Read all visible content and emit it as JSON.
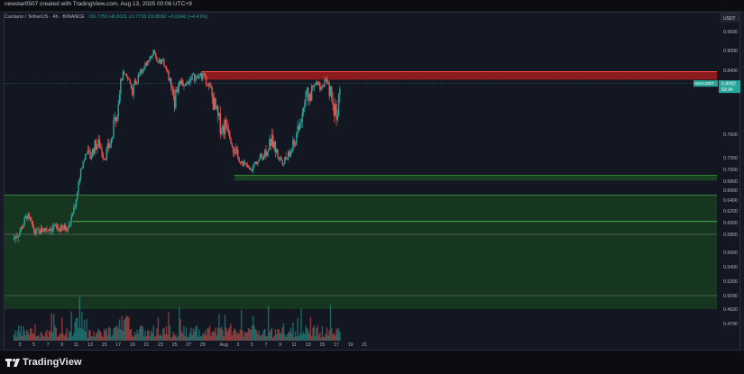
{
  "header": {
    "creator_line": "newstar0507 created with TradingView.com, Aug 13, 2025 00:06 UTC+9",
    "symbol_line": "Cardano / TetherUS · 4h · BINANCE",
    "ohlc": "O0.7750  H0.8111  L0.7733  C0.8092  +0.0342 (+4.41%)"
  },
  "price_axis": {
    "currency": "USDT",
    "ticks": [
      "0.9600",
      "0.9000",
      "0.8400",
      "0.8000",
      "0.7600",
      "0.7300",
      "0.7000",
      "0.6800",
      "0.6600",
      "0.6400",
      "0.6200",
      "0.6000",
      "0.5800",
      "0.5600",
      "0.5400",
      "0.5250",
      "0.5090",
      "0.4930",
      "0.4790"
    ],
    "current_label": "ADAUSDT",
    "current_price": "0.8092",
    "countdown": "53:34"
  },
  "time_axis": {
    "labels": [
      "3",
      "5",
      "7",
      "9",
      "11",
      "13",
      "15",
      "17",
      "19",
      "21",
      "23",
      "25",
      "27",
      "29",
      "Aug",
      "3",
      "5",
      "7",
      "9",
      "11",
      "13",
      "15",
      "17",
      "19",
      "21"
    ]
  },
  "brand": {
    "name": "TradingView"
  },
  "colors": {
    "up": "#26a69a",
    "down": "#ef5350",
    "supply_zone": "#b71c1c",
    "demand_zone": "#1b5e20",
    "background": "#131722"
  },
  "chart_data": {
    "type": "candlestick",
    "title": "Cardano / TetherUS · 4h · BINANCE",
    "interval": "4h",
    "ylim": [
      0.479,
      0.96
    ],
    "x_range": [
      "Jul 2",
      "Aug 21"
    ],
    "current_price": 0.8092,
    "close_path": [
      {
        "day": 2.0,
        "close": 0.574
      },
      {
        "day": 3.0,
        "close": 0.585
      },
      {
        "day": 4.0,
        "close": 0.612
      },
      {
        "day": 4.6,
        "close": 0.598
      },
      {
        "day": 5.2,
        "close": 0.582
      },
      {
        "day": 6.5,
        "close": 0.589
      },
      {
        "day": 8.0,
        "close": 0.592
      },
      {
        "day": 9.0,
        "close": 0.588
      },
      {
        "day": 10.0,
        "close": 0.594
      },
      {
        "day": 11.0,
        "close": 0.64
      },
      {
        "day": 11.6,
        "close": 0.7
      },
      {
        "day": 12.3,
        "close": 0.735
      },
      {
        "day": 13.0,
        "close": 0.73
      },
      {
        "day": 13.6,
        "close": 0.745
      },
      {
        "day": 14.3,
        "close": 0.748
      },
      {
        "day": 15.0,
        "close": 0.73
      },
      {
        "day": 16.0,
        "close": 0.752
      },
      {
        "day": 17.0,
        "close": 0.79
      },
      {
        "day": 17.6,
        "close": 0.83
      },
      {
        "day": 18.4,
        "close": 0.818
      },
      {
        "day": 19.0,
        "close": 0.8
      },
      {
        "day": 20.0,
        "close": 0.83
      },
      {
        "day": 20.6,
        "close": 0.85
      },
      {
        "day": 21.3,
        "close": 0.87
      },
      {
        "day": 22.0,
        "close": 0.895
      },
      {
        "day": 22.6,
        "close": 0.862
      },
      {
        "day": 23.3,
        "close": 0.872
      },
      {
        "day": 24.2,
        "close": 0.82
      },
      {
        "day": 25.0,
        "close": 0.79
      },
      {
        "day": 25.8,
        "close": 0.815
      },
      {
        "day": 26.6,
        "close": 0.805
      },
      {
        "day": 27.4,
        "close": 0.826
      },
      {
        "day": 28.2,
        "close": 0.822
      },
      {
        "day": 29.0,
        "close": 0.83
      },
      {
        "day": 29.6,
        "close": 0.812
      },
      {
        "day": 30.4,
        "close": 0.79
      },
      {
        "day": 31.2,
        "close": 0.772
      },
      {
        "day": 31.8,
        "close": 0.765
      },
      {
        "day": 32.6,
        "close": 0.77
      },
      {
        "day": 33.4,
        "close": 0.742
      },
      {
        "day": 34.2,
        "close": 0.725
      },
      {
        "day": 35.0,
        "close": 0.712
      },
      {
        "day": 35.8,
        "close": 0.695
      },
      {
        "day": 36.4,
        "close": 0.715
      },
      {
        "day": 37.2,
        "close": 0.728
      },
      {
        "day": 38.0,
        "close": 0.74
      },
      {
        "day": 38.8,
        "close": 0.752
      },
      {
        "day": 39.6,
        "close": 0.735
      },
      {
        "day": 40.4,
        "close": 0.72
      },
      {
        "day": 41.2,
        "close": 0.732
      },
      {
        "day": 42.0,
        "close": 0.748
      },
      {
        "day": 42.8,
        "close": 0.768
      },
      {
        "day": 43.6,
        "close": 0.79
      },
      {
        "day": 44.4,
        "close": 0.795
      },
      {
        "day": 45.2,
        "close": 0.808
      },
      {
        "day": 45.8,
        "close": 0.803
      },
      {
        "day": 46.4,
        "close": 0.815
      },
      {
        "day": 47.0,
        "close": 0.8
      },
      {
        "day": 47.6,
        "close": 0.782
      },
      {
        "day": 48.2,
        "close": 0.779
      },
      {
        "day": 48.6,
        "close": 0.8092
      }
    ],
    "zones": [
      {
        "type": "supply",
        "from": 0.818,
        "to": 0.837
      },
      {
        "type": "demand",
        "from": 0.681,
        "to": 0.69
      },
      {
        "type": "demand",
        "from": 0.493,
        "to": 0.65
      }
    ],
    "levels": [
      0.602,
      0.58,
      0.509
    ]
  }
}
